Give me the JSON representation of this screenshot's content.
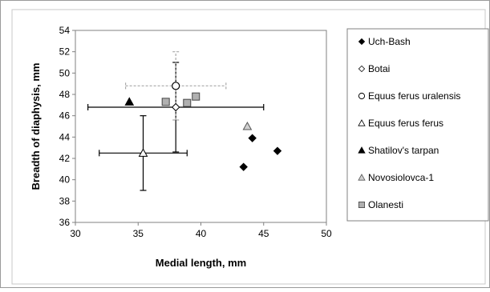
{
  "chart_data": {
    "type": "scatter",
    "xlabel": "Medial length, mm",
    "ylabel": "Breadth of diaphysis,  mm",
    "xlim": [
      30,
      50
    ],
    "ylim": [
      36,
      54
    ],
    "x_ticks": [
      30,
      35,
      40,
      45,
      50
    ],
    "y_ticks": [
      36,
      38,
      40,
      42,
      44,
      46,
      48,
      50,
      52,
      54
    ],
    "grid": false,
    "legend_position": "right",
    "series": [
      {
        "name": "Uch-Bash",
        "marker": "diamond-filled",
        "color": "#000000",
        "points": [
          {
            "x": 43.4,
            "y": 41.2
          },
          {
            "x": 44.1,
            "y": 43.9
          },
          {
            "x": 46.1,
            "y": 42.7
          }
        ]
      },
      {
        "name": "Botai",
        "marker": "diamond-open",
        "color": "#000000",
        "points": [
          {
            "x": 38.0,
            "y": 46.8,
            "xerr": 7.0,
            "yerr": 4.2,
            "error_style": "solid-black"
          }
        ]
      },
      {
        "name": "Equus ferus uralensis",
        "marker": "circle-open",
        "color": "#000000",
        "points": [
          {
            "x": 38.0,
            "y": 48.8,
            "xerr": 4.0,
            "yerr": 3.2,
            "error_style": "dashed-gray"
          }
        ]
      },
      {
        "name": "Equus ferus ferus",
        "marker": "triangle-open",
        "color": "#000000",
        "points": [
          {
            "x": 35.4,
            "y": 42.5,
            "xerr": 3.5,
            "yerr": 3.5,
            "error_style": "solid-black"
          }
        ]
      },
      {
        "name": "Shatilov's tarpan",
        "marker": "triangle-filled",
        "color": "#000000",
        "points": [
          {
            "x": 34.3,
            "y": 47.3
          }
        ]
      },
      {
        "name": "Novosiolovca-1",
        "marker": "triangle-gray",
        "color": "#a8a8a8",
        "points": [
          {
            "x": 43.7,
            "y": 45.0
          }
        ]
      },
      {
        "name": "Olanesti",
        "marker": "square-gray",
        "color": "#a8a8a8",
        "points": [
          {
            "x": 37.2,
            "y": 47.3
          },
          {
            "x": 38.9,
            "y": 47.2
          },
          {
            "x": 39.6,
            "y": 47.8
          }
        ]
      }
    ]
  }
}
